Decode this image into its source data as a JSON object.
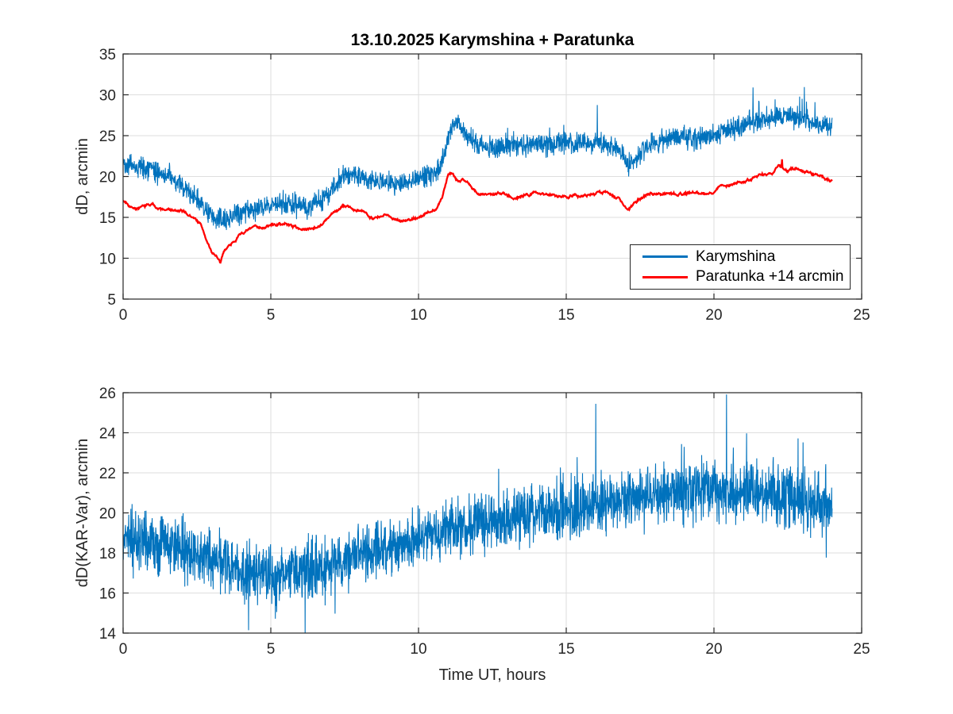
{
  "figure_title": "13.10.2025  Karymshina + Paratunka",
  "colors": {
    "karymshina_blue": "#0072BD",
    "paratunka_red": "#FF0000",
    "grid": "#dedede",
    "axis": "#262626",
    "background": "#ffffff"
  },
  "legend": {
    "entries": [
      {
        "label": "Karymshina",
        "color": "#0072BD"
      },
      {
        "label": "Paratunka +14 arcmin",
        "color": "#FF0000"
      }
    ],
    "position": "inside lower right of top plot"
  },
  "chart_data": [
    {
      "type": "line",
      "title": "13.10.2025  Karymshina + Paratunka",
      "xlabel": "",
      "ylabel": "dD, arcmin",
      "xlim": [
        0,
        25
      ],
      "ylim": [
        5,
        35
      ],
      "xticks": [
        0,
        5,
        10,
        15,
        20,
        25
      ],
      "yticks": [
        5,
        10,
        15,
        20,
        25,
        30,
        35
      ],
      "grid": true,
      "x_range_of_data": [
        0,
        24
      ],
      "series": [
        {
          "name": "Karymshina",
          "color": "#0072BD",
          "kind": "band",
          "n": 2600,
          "seed": 42,
          "sd_mult": 1.3,
          "linewidth": 1.1,
          "trend_points": [
            [
              0,
              21.8
            ],
            [
              0.3,
              21.3
            ],
            [
              0.7,
              21.0
            ],
            [
              1,
              20.8
            ],
            [
              1.5,
              20.0
            ],
            [
              2,
              18.8
            ],
            [
              2.5,
              17.2
            ],
            [
              2.8,
              15.8
            ],
            [
              3.1,
              14.8
            ],
            [
              3.4,
              14.6
            ],
            [
              3.7,
              15.2
            ],
            [
              4,
              15.7
            ],
            [
              4.5,
              16.1
            ],
            [
              5,
              16.5
            ],
            [
              5.5,
              16.8
            ],
            [
              6,
              16.5
            ],
            [
              6.3,
              16.2
            ],
            [
              6.7,
              17.0
            ],
            [
              7,
              18.2
            ],
            [
              7.5,
              20.2
            ],
            [
              7.8,
              20.4
            ],
            [
              8.1,
              19.8
            ],
            [
              8.5,
              19.3
            ],
            [
              9,
              19.2
            ],
            [
              9.5,
              19.1
            ],
            [
              10,
              19.8
            ],
            [
              10.5,
              20.4
            ],
            [
              10.8,
              21.5
            ],
            [
              11,
              24.5
            ],
            [
              11.2,
              26.6
            ],
            [
              11.35,
              26.3
            ],
            [
              11.5,
              25.8
            ],
            [
              11.7,
              25.0
            ],
            [
              11.9,
              24.2
            ],
            [
              12.2,
              23.5
            ],
            [
              12.6,
              23.4
            ],
            [
              13,
              23.7
            ],
            [
              13.5,
              23.9
            ],
            [
              14,
              23.9
            ],
            [
              14.5,
              23.8
            ],
            [
              15,
              24.2
            ],
            [
              15.5,
              24.0
            ],
            [
              16,
              24.2
            ],
            [
              16.4,
              24.0
            ],
            [
              16.8,
              23.3
            ],
            [
              17.1,
              21.3
            ],
            [
              17.35,
              22.2
            ],
            [
              17.6,
              23.2
            ],
            [
              18,
              24.2
            ],
            [
              18.5,
              24.8
            ],
            [
              19,
              25.0
            ],
            [
              19.5,
              24.6
            ],
            [
              20,
              25.2
            ],
            [
              20.5,
              25.8
            ],
            [
              21,
              26.2
            ],
            [
              21.5,
              27.0
            ],
            [
              22,
              27.2
            ],
            [
              22.4,
              27.5
            ],
            [
              22.8,
              27.2
            ],
            [
              23.2,
              26.6
            ],
            [
              23.6,
              26.2
            ],
            [
              24,
              26.3
            ]
          ],
          "spikes": [
            [
              16.05,
              5.3
            ],
            [
              21.32,
              4.2
            ],
            [
              22.9,
              2.6
            ],
            [
              23.06,
              3.2
            ],
            [
              11.15,
              1.3
            ],
            [
              19.0,
              2.0
            ],
            [
              12.95,
              1.8
            ]
          ],
          "random_spikes": [
            {
              "from": 12,
              "to": 24,
              "p": 0.005,
              "min": 1.2,
              "max": 3.2,
              "sign": 1
            },
            {
              "from": 20.6,
              "to": 23.5,
              "p": 0.02,
              "min": 0.8,
              "max": 2.2,
              "sign": 1
            }
          ]
        },
        {
          "name": "Paratunka +14 arcmin",
          "color": "#FF0000",
          "kind": "smooth",
          "n": 1500,
          "seed": 7,
          "walk_decay": 0.97,
          "walk_step": 0.22,
          "jitter": 0.1,
          "linewidth": 2.3,
          "trend_points": [
            [
              0,
              17.0
            ],
            [
              0.3,
              16.5
            ],
            [
              0.7,
              16.3
            ],
            [
              1,
              16.5
            ],
            [
              1.3,
              16.0
            ],
            [
              1.7,
              15.8
            ],
            [
              2,
              15.5
            ],
            [
              2.3,
              15.0
            ],
            [
              2.6,
              14.3
            ],
            [
              3.0,
              10.5
            ],
            [
              3.15,
              10.3
            ],
            [
              3.3,
              9.2
            ],
            [
              3.45,
              11.0
            ],
            [
              3.7,
              12.0
            ],
            [
              4,
              13.2
            ],
            [
              4.3,
              13.5
            ],
            [
              4.6,
              13.8
            ],
            [
              5,
              14.0
            ],
            [
              5.3,
              14.2
            ],
            [
              5.7,
              14.0
            ],
            [
              6,
              13.6
            ],
            [
              6.2,
              13.5
            ],
            [
              6.5,
              14.0
            ],
            [
              7,
              15.2
            ],
            [
              7.4,
              16.2
            ],
            [
              7.6,
              16.3
            ],
            [
              8,
              15.5
            ],
            [
              8.3,
              15.2
            ],
            [
              8.7,
              15.0
            ],
            [
              9,
              15.1
            ],
            [
              9.3,
              14.9
            ],
            [
              9.7,
              14.8
            ],
            [
              10,
              15.2
            ],
            [
              10.3,
              15.5
            ],
            [
              10.6,
              16.2
            ],
            [
              10.8,
              17.5
            ],
            [
              11,
              20.3
            ],
            [
              11.1,
              20.6
            ],
            [
              11.25,
              20.0
            ],
            [
              11.35,
              19.6
            ],
            [
              11.5,
              20.0
            ],
            [
              11.65,
              19.6
            ],
            [
              11.9,
              18.3
            ],
            [
              12.1,
              17.9
            ],
            [
              12.4,
              17.6
            ],
            [
              12.7,
              17.8
            ],
            [
              12.9,
              18.1
            ],
            [
              13.1,
              17.8
            ],
            [
              13.4,
              17.7
            ],
            [
              13.8,
              17.9
            ],
            [
              14.2,
              18.0
            ],
            [
              14.6,
              17.9
            ],
            [
              15,
              18.0
            ],
            [
              15.3,
              18.1
            ],
            [
              15.7,
              18.0
            ],
            [
              16,
              18.1
            ],
            [
              16.3,
              18.0
            ],
            [
              16.6,
              17.9
            ],
            [
              16.8,
              17.5
            ],
            [
              17.1,
              15.9
            ],
            [
              17.3,
              16.5
            ],
            [
              17.5,
              17.3
            ],
            [
              17.8,
              17.8
            ],
            [
              18,
              18.0
            ],
            [
              18.3,
              18.1
            ],
            [
              18.7,
              18.0
            ],
            [
              19,
              18.2
            ],
            [
              19.3,
              18.3
            ],
            [
              19.7,
              18.1
            ],
            [
              20,
              18.3
            ],
            [
              20.3,
              19.3
            ],
            [
              20.5,
              19.0
            ],
            [
              20.7,
              19.3
            ],
            [
              21,
              19.5
            ],
            [
              21.3,
              19.8
            ],
            [
              21.7,
              20.0
            ],
            [
              22,
              20.3
            ],
            [
              22.2,
              21.2
            ],
            [
              22.35,
              21.0
            ],
            [
              22.5,
              20.6
            ],
            [
              22.8,
              21.0
            ],
            [
              23,
              20.7
            ],
            [
              23.3,
              20.5
            ],
            [
              23.6,
              20.3
            ],
            [
              24,
              19.5
            ]
          ],
          "spikes": [
            [
              22.3,
              0.9
            ]
          ],
          "random_spikes": []
        }
      ]
    },
    {
      "type": "line",
      "title": "",
      "xlabel": "Time UT, hours",
      "ylabel": "dD(KAR-Var), arcmin",
      "xlim": [
        0,
        25
      ],
      "ylim": [
        14,
        26
      ],
      "xticks": [
        0,
        5,
        10,
        15,
        20,
        25
      ],
      "yticks": [
        14,
        16,
        18,
        20,
        22,
        24,
        26
      ],
      "grid": true,
      "x_range_of_data": [
        0,
        24
      ],
      "series": [
        {
          "name": "dD(KAR-Var)",
          "color": "#0072BD",
          "kind": "band",
          "n": 3000,
          "seed": 99,
          "sd_mult": 1.4,
          "linewidth": 1.1,
          "trend_points": [
            [
              0,
              18.6
            ],
            [
              0.5,
              18.6
            ],
            [
              1,
              18.5
            ],
            [
              1.5,
              18.4
            ],
            [
              2,
              18.2
            ],
            [
              2.5,
              18.0
            ],
            [
              3,
              17.7
            ],
            [
              3.5,
              17.4
            ],
            [
              4,
              17.1
            ],
            [
              4.5,
              16.9
            ],
            [
              5,
              16.85
            ],
            [
              5.5,
              16.95
            ],
            [
              6,
              17.1
            ],
            [
              6.5,
              17.3
            ],
            [
              7,
              17.5
            ],
            [
              7.5,
              17.7
            ],
            [
              8,
              17.9
            ],
            [
              8.5,
              18.1
            ],
            [
              9,
              18.3
            ],
            [
              9.5,
              18.5
            ],
            [
              10,
              18.8
            ],
            [
              10.5,
              19.0
            ],
            [
              11,
              19.2
            ],
            [
              11.5,
              19.35
            ],
            [
              12,
              19.45
            ],
            [
              12.5,
              19.55
            ],
            [
              13,
              19.7
            ],
            [
              13.5,
              19.8
            ],
            [
              14,
              19.95
            ],
            [
              14.5,
              20.05
            ],
            [
              15,
              20.15
            ],
            [
              15.5,
              20.25
            ],
            [
              16,
              20.35
            ],
            [
              16.5,
              20.45
            ],
            [
              17,
              20.55
            ],
            [
              17.5,
              20.65
            ],
            [
              18,
              20.8
            ],
            [
              18.5,
              20.9
            ],
            [
              19,
              21.0
            ],
            [
              19.5,
              21.05
            ],
            [
              20,
              21.05
            ],
            [
              20.5,
              21.0
            ],
            [
              21,
              21.0
            ],
            [
              21.5,
              20.95
            ],
            [
              22,
              20.85
            ],
            [
              22.5,
              20.75
            ],
            [
              23,
              20.6
            ],
            [
              23.5,
              20.45
            ],
            [
              24,
              20.3
            ]
          ],
          "spikes": [
            [
              16.0,
              4.9
            ],
            [
              20.42,
              4.1
            ],
            [
              12.55,
              2.6
            ],
            [
              18.9,
              2.9
            ],
            [
              21.1,
              2.8
            ],
            [
              22.85,
              3.2
            ],
            [
              4.25,
              -2.5
            ],
            [
              5.15,
              -2.3
            ],
            [
              3.3,
              -1.7
            ],
            [
              23.8,
              -2.5
            ]
          ],
          "random_spikes": [
            {
              "from": 0,
              "to": 8,
              "p": 0.01,
              "min": 0.9,
              "max": 2.4,
              "sign": -1
            },
            {
              "from": 12,
              "to": 24,
              "p": 0.012,
              "min": 1.0,
              "max": 2.6,
              "sign": 1
            },
            {
              "from": 17,
              "to": 22.6,
              "p": 0.02,
              "min": 0.9,
              "max": 2.2,
              "sign": 1
            }
          ]
        }
      ]
    }
  ]
}
